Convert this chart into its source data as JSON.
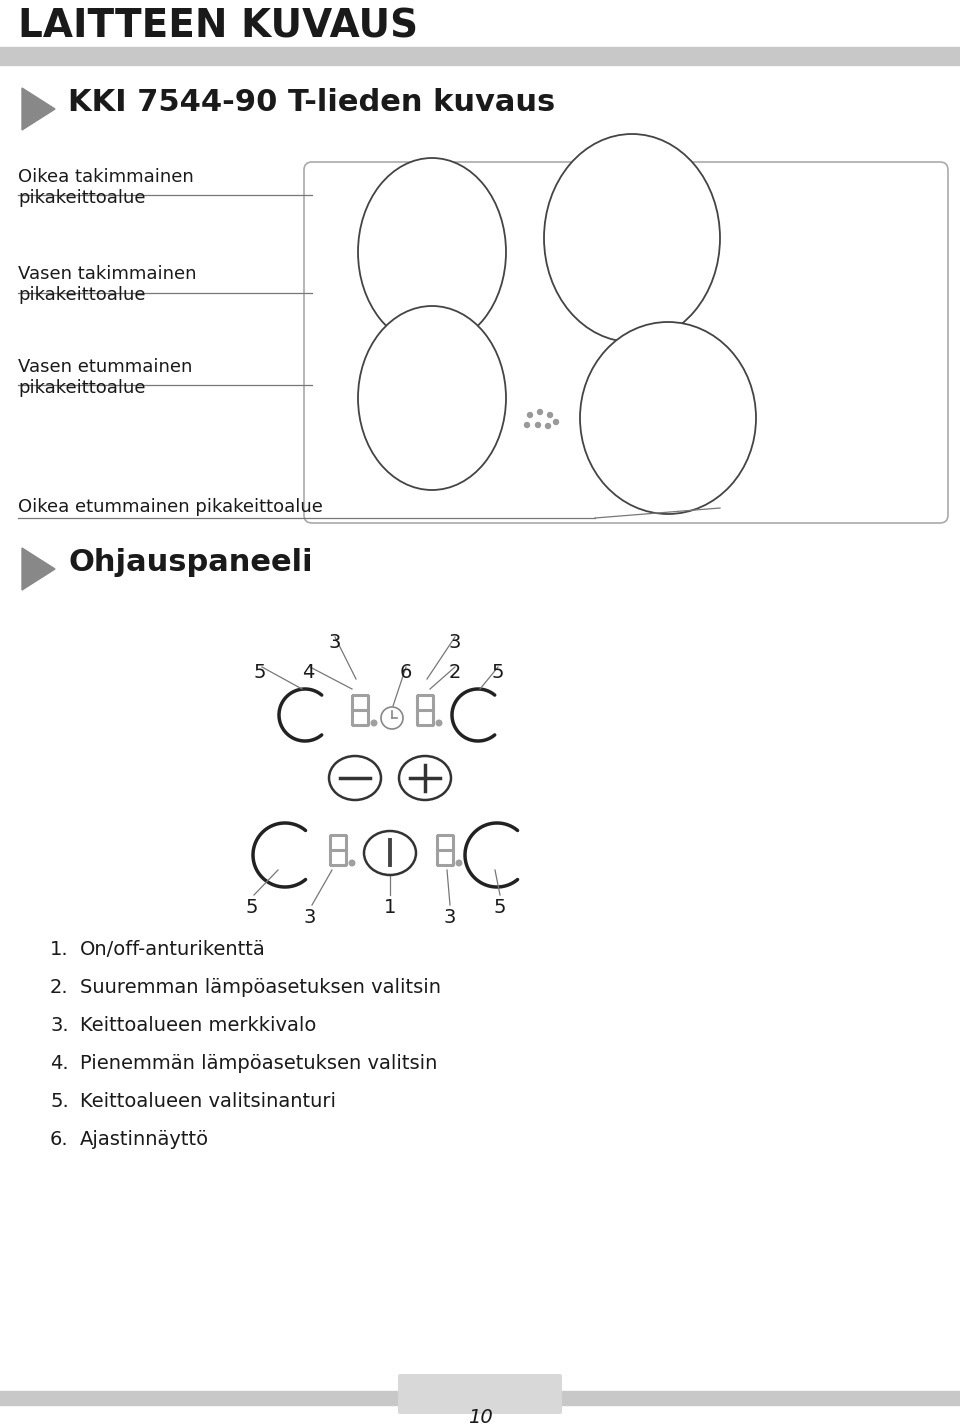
{
  "title": "LAITTEEN KUVAUS",
  "subtitle": "KKI 7544-90 T-lieden kuvaus",
  "label_oikea_takimmainen": "Oikea takimmainen\npikakeittoalue",
  "label_vasen_takimmainen": "Vasen takimmainen\npikakeittoalue",
  "label_vasen_etummainen": "Vasen etummainen\npikakeittoalue",
  "label_oikea_etummainen": "Oikea etummainen pikakeittoalue",
  "section2_title": "Ohjauspaneeli",
  "numbered_labels": [
    "On/off-anturikenttä",
    "Suuremman lämpöasetuksen valitsin",
    "Keittoalueen merkkivalo",
    "Pienemmän lämpöasetuksen valitsin",
    "Keittoalueen valitsinanturi",
    "Ajastinnäyttö"
  ],
  "page_number": "10",
  "bg_color": "#ffffff",
  "text_color": "#1a1a1a",
  "gray_bar_color": "#c8c8c8",
  "seg_color": "#a0a0a0",
  "knob_color": "#222222",
  "line_color": "#777777"
}
